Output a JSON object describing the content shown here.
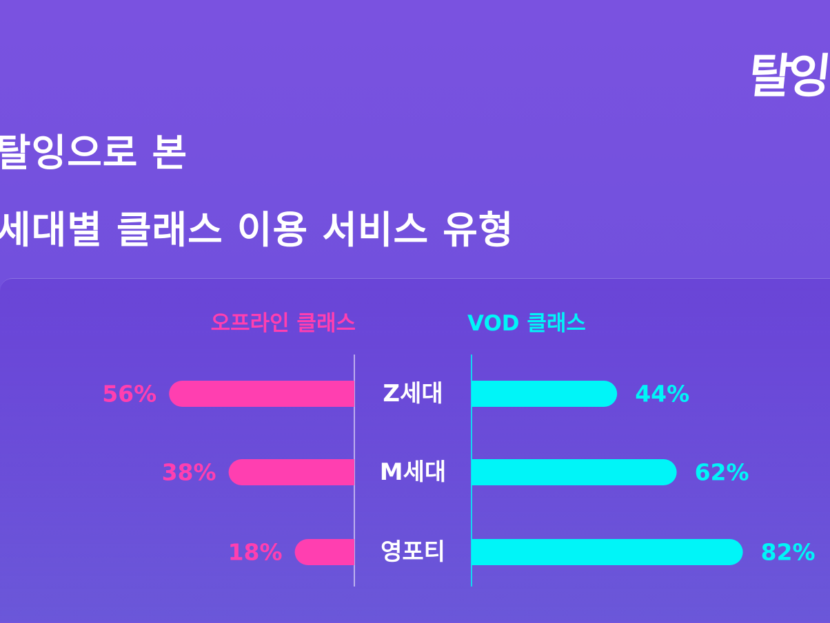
{
  "logo": "탈잉",
  "title": {
    "line1": "탈잉으로 본",
    "line2": "세대별 클래스 이용 서비스 유형"
  },
  "colors": {
    "offline": "#ff3fb0",
    "vod": "#00f5f8",
    "category_text": "#ffffff",
    "divider": "#ffffff"
  },
  "chart_data": {
    "type": "bar",
    "title": "탈잉으로 본 세대별 클래스 이용 서비스 유형",
    "categories": [
      "Z세대",
      "M세대",
      "영포티"
    ],
    "series": [
      {
        "name": "오프라인 클래스",
        "values": [
          56,
          38,
          18
        ],
        "labels": [
          "56%",
          "38%",
          "18%"
        ]
      },
      {
        "name": "VOD 클래스",
        "values": [
          44,
          62,
          82
        ],
        "labels": [
          "44%",
          "62%",
          "82%"
        ]
      }
    ],
    "unit": "%",
    "ylim": [
      0,
      100
    ],
    "grid": false,
    "legend": "top"
  }
}
